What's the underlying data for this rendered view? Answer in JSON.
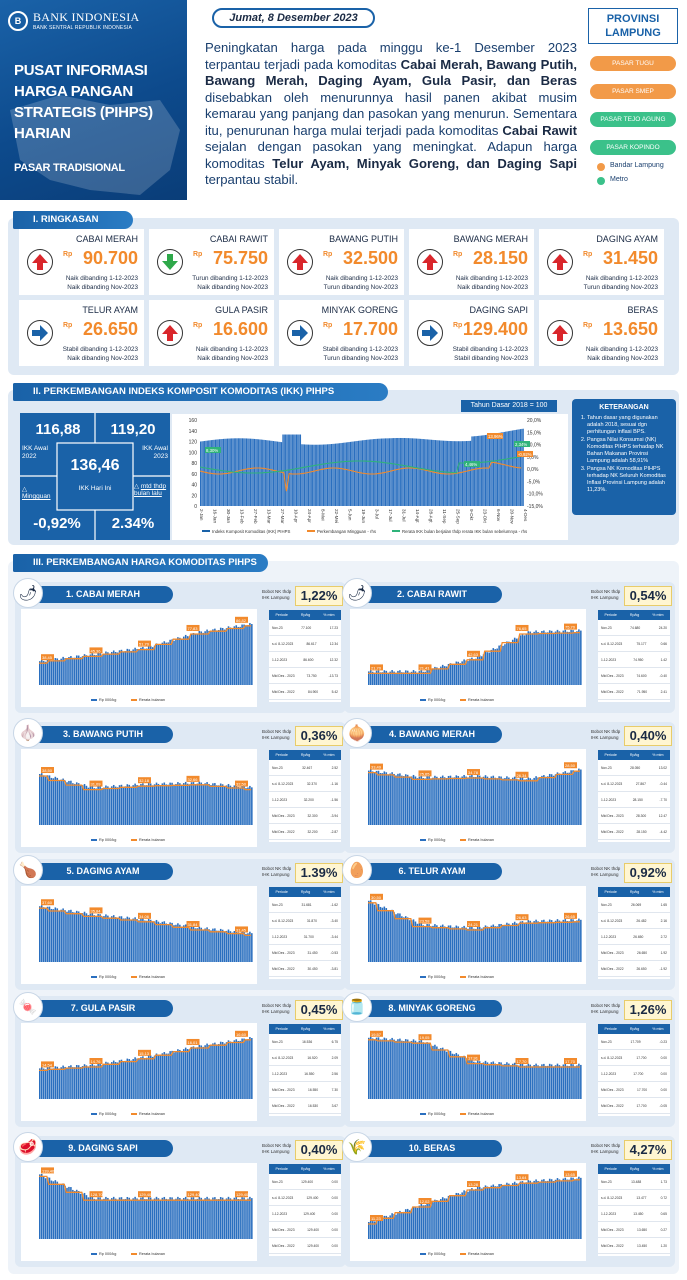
{
  "header": {
    "bank_name": "BANK INDONESIA",
    "bank_sub": "BANK SENTRAL REPUBLIK INDONESIA",
    "title_lines": [
      "PUSAT INFORMASI",
      "HARGA PANGAN",
      "STRATEGIS (PIHPS)",
      "HARIAN"
    ],
    "market_type": "PASAR TRADISIONAL",
    "date": "Jumat, 8 Desember 2023",
    "intro_html": "Peningkatan harga pada minggu ke-1 Desember 2023 terpantau terjadi pada komoditas <b>Cabai Merah, Bawang Putih, Bawang Merah, Daging Ayam, Gula Pasir, dan Beras</b> disebabkan oleh menurunnya hasil panen akibat musim kemarau yang panjang dan pasokan yang menurun. Sementara itu, penurunan harga mulai terjadi pada komoditas <b>Cabai Rawit</b> sejalan dengan pasokan yang meningkat. Adapun harga komoditas <b>Telur Ayam, Minyak Goreng, dan Daging Sapi</b> terpantau stabil.",
    "province": "PROVINSI LAMPUNG",
    "markets": [
      {
        "label": "PASAR TUGU",
        "color": "#f29a48"
      },
      {
        "label": "PASAR SMEP",
        "color": "#f29a48"
      },
      {
        "label": "PASAR TEJO AGUNG",
        "color": "#3bc18a"
      },
      {
        "label": "PASAR KOPINDO",
        "color": "#3bc18a"
      }
    ],
    "legend": [
      {
        "label": "Bandar Lampung",
        "color": "#f29a48"
      },
      {
        "label": "Metro",
        "color": "#3bc18a"
      }
    ]
  },
  "ringkasan": {
    "title": "I. RINGKASAN",
    "currency": "Rp",
    "items": [
      {
        "name": "CABAI MERAH",
        "price": "90.700",
        "dir": "up",
        "n1": "Naik dibanding 1-12-2023",
        "n2": "Naik dibanding Nov-2023"
      },
      {
        "name": "CABAI RAWIT",
        "price": "75.750",
        "dir": "down",
        "n1": "Turun dibanding 1-12-2023",
        "n2": "Naik dibanding Nov-2023"
      },
      {
        "name": "BAWANG PUTIH",
        "price": "32.500",
        "dir": "up",
        "n1": "Naik dibanding 1-12-2023",
        "n2": "Turun dibanding Nov-2023"
      },
      {
        "name": "BAWANG MERAH",
        "price": "28.150",
        "dir": "up",
        "n1": "Naik dibanding 1-12-2023",
        "n2": "Naik dibanding Nov-2023"
      },
      {
        "name": "DAGING AYAM",
        "price": "31.450",
        "dir": "up",
        "n1": "Naik dibanding 1-12-2023",
        "n2": "Turun dibanding Nov-2023"
      },
      {
        "name": "TELUR AYAM",
        "price": "26.650",
        "dir": "right",
        "n1": "Stabil dibanding 1-12-2023",
        "n2": "Naik dibanding Nov-2023"
      },
      {
        "name": "GULA PASIR",
        "price": "16.600",
        "dir": "up",
        "n1": "Naik dibanding 1-12-2023",
        "n2": "Naik dibanding Nov-2023"
      },
      {
        "name": "MINYAK GORENG",
        "price": "17.700",
        "dir": "right",
        "n1": "Stabil dibanding 1-12-2023",
        "n2": "Turun dibanding Nov-2023"
      },
      {
        "name": "DAGING SAPI",
        "price": "129.400",
        "dir": "right",
        "n1": "Stabil dibanding 1-12-2023",
        "n2": "Stabil dibanding Nov-2023"
      },
      {
        "name": "BERAS",
        "price": "13.650",
        "dir": "up",
        "n1": "Naik dibanding 1-12-2023",
        "n2": "Naik dibanding Nov-2023"
      }
    ]
  },
  "ikk": {
    "title": "II. PERKEMBANGAN INDEKS KOMPOSIT KOMODITAS (IKK) PIHPS",
    "base_year": "Tahun Dasar 2018 = 100",
    "awal_2022_value": "116,88",
    "awal_2022_label": "IKK Awal 2022",
    "awal_2023_value": "119,20",
    "awal_2023_label": "IKK Awal 2023",
    "hari_ini_value": "136,46",
    "hari_ini_label": "IKK Hari Ini",
    "mingguan_label": "Mingguan",
    "mtd_label": "mtd thdp bulan lalu",
    "mingguan_value": "-0,92%",
    "mtd_value": "2.34%",
    "keterangan_title": "KETERANGAN",
    "keterangan": [
      "Tahun dasar yang digunakan adalah 2018, sesuai dgn perhitungan inflasi BPS.",
      "Pangsa Nilai Konsumsi (NK) Komoditas PIHPS terhadap NK Bahan Makanan Provinsi Lampung adalah 58,91%",
      "Pangsa NK Komoditas PIHPS terhadap NK Seluruh Komoditas Inflasi Provinsi Lampung adalah 11,23%."
    ],
    "legend": [
      "Indeks Komposit Komoditas (IKK) PIHPS",
      "Perkembangan Mingguan - rhs",
      "Rerata IKK bulan berjalan thdp rerata IKK bulan sebelumnya - rhs"
    ],
    "chart_data": {
      "type": "bar",
      "ylim_left": [
        0,
        160
      ],
      "left_ticks": [
        "160",
        "140",
        "120",
        "100",
        "80",
        "60",
        "40",
        "20",
        "0"
      ],
      "right_ticks": [
        "20,0%",
        "15,0%",
        "10,0%",
        "5,0%",
        "0,0%",
        "-5,0%",
        "-10,0%",
        "-15,0%"
      ],
      "x_labels": [
        "2-Jan",
        "16-Jan",
        "30-Jan",
        "13-Feb",
        "27-Feb",
        "13-Mar",
        "27-Mar",
        "10-Apr",
        "24-Apr",
        "8-Mei",
        "22-Mei",
        "5-Jun",
        "19-Jun",
        "3-Jul",
        "17-Jul",
        "31-Jul",
        "14-Agt",
        "28-Agt",
        "11-Sep",
        "25-Sep",
        "9-Okt",
        "23-Okt",
        "6-Nov",
        "20-Nov",
        "4-Des"
      ],
      "annotations": [
        "8,30%",
        "13,96%",
        "2,34%",
        "-0,92%",
        "4,46%"
      ]
    }
  },
  "komoditas": {
    "title": "III. PERKEMBANGAN HARGA KOMODITAS PIHPS",
    "bobot_label": "Bobot NK thdp IHK Lampung",
    "table_header": [
      "Periode",
      "Rp/kg",
      "% mtm"
    ],
    "chart_legend": [
      "Rp 000/kg",
      "Rerata bulanan"
    ],
    "items": [
      {
        "title": "1. CABAI MERAH",
        "icon": "🌶",
        "pct": "1,22%",
        "rows": [
          [
            "Nov-23",
            "77.100",
            "17.23"
          ],
          [
            "s.d. 8-12-2023",
            "86.617",
            "12.34"
          ],
          [
            "1-12-2023",
            "86.600",
            "12.32"
          ],
          [
            "Mtd Des - 2023",
            "73.750",
            "-13.73"
          ],
          [
            "Mtd Des - 2022",
            "84.900",
            "5.42"
          ]
        ],
        "labels": [
          "38,45",
          "45,36",
          "51,70",
          "77,83",
          "86,82"
        ]
      },
      {
        "title": "2. CABAI RAWIT",
        "icon": "🌶",
        "pct": "0,54%",
        "rows": [
          [
            "Nov-23",
            "74.680",
            "24.20"
          ],
          [
            "s.d. 8-12-2023",
            "75.177",
            "0.66"
          ],
          [
            "1-12-2023",
            "74.950",
            "1.42"
          ],
          [
            "Mtd Des - 2023",
            "74.600",
            "-0.40"
          ],
          [
            "Mtd Des - 2022",
            "71.950",
            "2.41"
          ]
        ],
        "labels": [
          "21,70",
          "21,41",
          "42,63",
          "76,65",
          "75,70"
        ]
      },
      {
        "title": "3. BAWANG PUTIH",
        "icon": "🧄",
        "pct": "0,36%",
        "rows": [
          [
            "Nov-23",
            "32.467",
            "2.52"
          ],
          [
            "s.d. 8-12-2023",
            "32.370",
            "-1.16"
          ],
          [
            "1-12-2023",
            "32.200",
            "-1.56"
          ],
          [
            "Mtd Des - 2023",
            "32.300",
            "-3.94"
          ],
          [
            "Mtd Des - 2022",
            "32.200",
            "-2.87"
          ]
        ],
        "labels": [
          "38,50",
          "31,09",
          "32,18",
          "32,66",
          "32,50"
        ]
      },
      {
        "title": "4. BAWANG MERAH",
        "icon": "🧅",
        "pct": "0,40%",
        "rows": [
          [
            "Nov-23",
            "28.050",
            "13.02"
          ],
          [
            "s.d. 8-12-2023",
            "27.867",
            "-0.44"
          ],
          [
            "1-12-2023",
            "28.150",
            "-7.70"
          ],
          [
            "Mtd Des - 2023",
            "28.300",
            "12.47"
          ],
          [
            "Mtd Des - 2022",
            "28.150",
            "-4.42"
          ]
        ],
        "labels": [
          "33,49",
          "25,65",
          "34,78",
          "26,34",
          "28,50"
        ]
      },
      {
        "title": "5. DAGING AYAM",
        "icon": "🍗",
        "pct": "1.39%",
        "rows": [
          [
            "Nov-23",
            "31.681",
            "-1.62"
          ],
          [
            "s.d. 8-12-2023",
            "31.870",
            "-3.40"
          ],
          [
            "1-12-2023",
            "31.700",
            "-3.44"
          ],
          [
            "Mtd Des - 2023",
            "31.450",
            "-0.53"
          ],
          [
            "Mtd Des - 2022",
            "30.450",
            "-3.81"
          ]
        ],
        "labels": [
          "37,60",
          "35,84",
          "34,06",
          "31,84",
          "31,45"
        ]
      },
      {
        "title": "6. TELUR AYAM",
        "icon": "🥚",
        "pct": "0,92%",
        "rows": [
          [
            "Nov-23",
            "26.069",
            "1.65"
          ],
          [
            "s.d. 8-12-2023",
            "26.482",
            "2.16"
          ],
          [
            "1-12-2023",
            "26.650",
            "2.72"
          ],
          [
            "Mtd Des - 2023",
            "26.650",
            "1.92"
          ],
          [
            "Mtd Des - 2022",
            "26.650",
            "-1.92"
          ]
        ],
        "labels": [
          "30,50",
          "23,58",
          "24,21",
          "26,63",
          "26,65"
        ]
      },
      {
        "title": "7. GULA PASIR",
        "icon": "🍬",
        "pct": "0,45%",
        "rows": [
          [
            "Nov-23",
            "16.536",
            "6.75"
          ],
          [
            "s.d. 8-12-2023",
            "16.520",
            "2.09"
          ],
          [
            "1-12-2023",
            "16.550",
            "2.56"
          ],
          [
            "Mtd Des - 2023",
            "16.550",
            "7.30"
          ],
          [
            "Mtd Des - 2022",
            "16.530",
            "3.67"
          ]
        ],
        "labels": [
          "14,54",
          "14,76",
          "15,13",
          "16,01",
          "16,60"
        ]
      },
      {
        "title": "8. MINYAK GORENG",
        "icon": "🫙",
        "pct": "1,26%",
        "rows": [
          [
            "Nov-23",
            "17.709",
            "-0.23"
          ],
          [
            "s.d. 8-12-2023",
            "17.700",
            "0.00"
          ],
          [
            "1-12-2023",
            "17.700",
            "0.00"
          ],
          [
            "Mtd Des - 2023",
            "17.700",
            "0.00"
          ],
          [
            "Mtd Des - 2022",
            "17.700",
            "-0.05"
          ]
        ],
        "labels": [
          "19,57",
          "19,05",
          "17,91",
          "17,70",
          "17,70"
        ]
      },
      {
        "title": "9. DAGING SAPI",
        "icon": "🥩",
        "pct": "0,40%",
        "rows": [
          [
            "Nov-23",
            "129.400",
            "0.00"
          ],
          [
            "s.d. 8-12-2023",
            "129.400",
            "0.00"
          ],
          [
            "1-12-2023",
            "129.400",
            "0.00"
          ],
          [
            "Mtd Des - 2023",
            "129.400",
            "0.00"
          ],
          [
            "Mtd Des - 2022",
            "129.400",
            "0.00"
          ]
        ],
        "labels": [
          "139,40",
          "128,70",
          "129,40",
          "129,40",
          "129,40"
        ]
      },
      {
        "title": "10. BERAS",
        "icon": "🌾",
        "pct": "4,27%",
        "rows": [
          [
            "Nov-23",
            "13.488",
            "1.73"
          ],
          [
            "s.d. 8-12-2023",
            "13.477",
            "0.72"
          ],
          [
            "1-12-2023",
            "13.450",
            "0.65"
          ],
          [
            "Mtd Des - 2023",
            "13.650",
            "0.27"
          ],
          [
            "Mtd Des - 2022",
            "13.450",
            "1.20"
          ]
        ],
        "labels": [
          "11,23",
          "12,02",
          "13,28",
          "13,64",
          "13,65"
        ]
      }
    ]
  }
}
